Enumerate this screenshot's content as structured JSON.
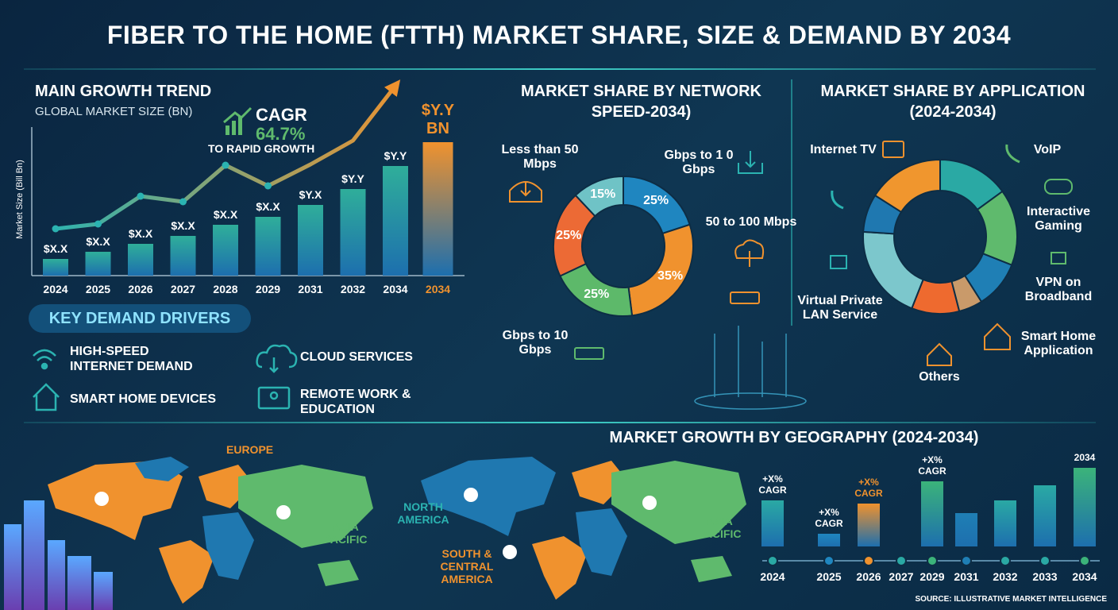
{
  "title": "FIBER TO THE HOME (FTTH) MARKET SHARE, SIZE & DEMAND BY 2034",
  "chart_data": [
    {
      "type": "bar",
      "title": "MAIN GROWTH TREND",
      "subtitle": "GLOBAL MARKET SIZE (BN)",
      "y_label": "Market Size (Bill Bn)",
      "categories": [
        "2024",
        "2025",
        "2026",
        "2027",
        "2028",
        "2029",
        "2031",
        "2032",
        "2034",
        "2034"
      ],
      "values": [
        21,
        30,
        40,
        50,
        64,
        74,
        89,
        109,
        138,
        168
      ],
      "value_labels": [
        "$X.X",
        "$X.X",
        "$X.X",
        "$X.X",
        "$X.X",
        "$X.X",
        "$Y.X",
        "$Y.Y",
        "$Y.Y",
        "$Y.Y BN"
      ],
      "colors": [
        "#2fae9a",
        "#2fae9a",
        "#2fae9a",
        "#2fae9a",
        "#2fae9a",
        "#2fae9a",
        "#2fae9a",
        "#2fae9a",
        "#2fae9a",
        "#f0922e"
      ],
      "trend": {
        "color": "#2bb3b1",
        "values": [
          59,
          65,
          100,
          93,
          139,
          113,
          140,
          170,
          239,
          null
        ]
      },
      "ylim": [
        0,
        240
      ],
      "annotation": {
        "title": "CAGR",
        "value": "64.7%",
        "text": "TO RAPID GROWTH"
      }
    },
    {
      "type": "donut",
      "title": "MARKET SHARE BY NETWORK SPEED-2034)",
      "categories": [
        "Gbps to 1 0 Gbps",
        "50 to 100 Mbps",
        "Gbps to 10 Gbps",
        null,
        "Less than 50 Mbps"
      ],
      "values": [
        25,
        35,
        25,
        25,
        15
      ],
      "value_labels": [
        "25%",
        "35%",
        "25%",
        "25%",
        "15%"
      ],
      "colors": [
        "#1f86c0",
        "#f0922e",
        "#5db96a",
        "#ec6a35",
        "#6fc3c6"
      ]
    },
    {
      "type": "donut",
      "title": "MARKET SHARE BY APPLICATION (2024-2034)",
      "categories": [
        "VoIP",
        "Interactive Gaming",
        "VPN on Broadband",
        "Smart Home Application",
        "Others",
        "Virtual Private LAN Service",
        null,
        "Internet TV"
      ],
      "values": [
        15,
        16,
        10,
        5,
        10,
        20,
        8,
        16
      ],
      "colors": [
        "#2aa9a4",
        "#5fba6d",
        "#1f7fb5",
        "#c99a6a",
        "#ee6a2f",
        "#7cc7cc",
        "#1f78b0",
        "#f0962e"
      ]
    },
    {
      "type": "bar",
      "title": "MARKET GROWTH BY GEOGRAPHY (2024-2034)",
      "categories": [
        "2024",
        "2025",
        "2026",
        "2027",
        "2029",
        "2031",
        "2032",
        "2033",
        "2034"
      ],
      "values": [
        58,
        16,
        54,
        null,
        82,
        42,
        58,
        77,
        99
      ],
      "value_labels": [
        "+X% CAGR",
        "+X% CAGR",
        "+X% CAGR",
        null,
        "+X% CAGR",
        null,
        null,
        null,
        "2034"
      ],
      "colors": [
        "#2aa9a4",
        "#1f86c0",
        "#f0922e",
        "#2aa9a4",
        "#3bb37a",
        "#1f7fb5",
        "#2aa9a4",
        "#2aa9a4",
        "#3bb37a"
      ],
      "ylim": [
        0,
        100
      ]
    }
  ],
  "drivers": {
    "title": "KEY DEMAND DRIVERS",
    "items": [
      "HIGH-SPEED INTERNET DEMAND",
      "CLOUD SERVICES",
      "SMART HOME DEVICES",
      "REMOTE WORK & EDUCATION"
    ]
  },
  "maps": {
    "labels": [
      "EUROPE",
      "ASIA PACIFIC",
      "NORTH AMERICA",
      "SOUTH & CENTRAL AMERICA",
      "ASIA PACIFIC"
    ]
  },
  "source": "SOURCE: ILLUSTRATIVE MARKET INTELLIGENCE"
}
